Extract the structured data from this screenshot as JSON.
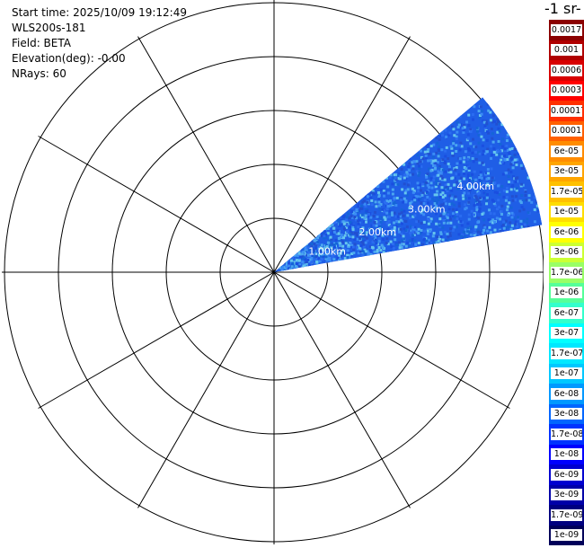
{
  "header": {
    "start_time": "Start time: 2025/10/09 19:12:49",
    "instrument": "WLS200s-181",
    "field": "Field: BETA",
    "elevation": "Elevation(deg): -0.00",
    "nrays": "NRays: 60"
  },
  "colorbar": {
    "unit_title": "-1 sr-",
    "levels": [
      {
        "label": "0.0017",
        "color": "#8b0000"
      },
      {
        "label": "0.001",
        "color": "#b00000"
      },
      {
        "label": "0.0006",
        "color": "#d80000"
      },
      {
        "label": "0.0003",
        "color": "#ff0000"
      },
      {
        "label": "0.00017",
        "color": "#ff3000"
      },
      {
        "label": "0.0001",
        "color": "#ff6000"
      },
      {
        "label": "6e-05",
        "color": "#ff8c00"
      },
      {
        "label": "3e-05",
        "color": "#ffa500"
      },
      {
        "label": "1.7e-05",
        "color": "#ffc000"
      },
      {
        "label": "1e-05",
        "color": "#ffdd00"
      },
      {
        "label": "6e-06",
        "color": "#ffff00"
      },
      {
        "label": "3e-06",
        "color": "#ccff33"
      },
      {
        "label": "1.7e-06",
        "color": "#99ff66"
      },
      {
        "label": "1e-06",
        "color": "#55ff99"
      },
      {
        "label": "6e-07",
        "color": "#33ffcc"
      },
      {
        "label": "3e-07",
        "color": "#00ffff"
      },
      {
        "label": "1.7e-07",
        "color": "#00e8ff"
      },
      {
        "label": "1e-07",
        "color": "#00c8ff"
      },
      {
        "label": "6e-08",
        "color": "#0099ff"
      },
      {
        "label": "3e-08",
        "color": "#0066ff"
      },
      {
        "label": "1.7e-08",
        "color": "#0033ff"
      },
      {
        "label": "1e-08",
        "color": "#0000ff"
      },
      {
        "label": "6e-09",
        "color": "#0000d0"
      },
      {
        "label": "3e-09",
        "color": "#0000a8"
      },
      {
        "label": "1.7e-09",
        "color": "#000080"
      },
      {
        "label": "1e-09",
        "color": "#00005a"
      }
    ]
  },
  "range_labels": [
    "1.00km",
    "2.00km",
    "3.00km",
    "4.00km"
  ],
  "scan": {
    "azimuth_start_deg": 10,
    "azimuth_end_deg": 40,
    "fill_colors": [
      "#1a4fe0",
      "#2a6cf0",
      "#3a8cf5",
      "#1565d8",
      "#4aa6f0",
      "#2250d0",
      "#66c6ee"
    ]
  }
}
